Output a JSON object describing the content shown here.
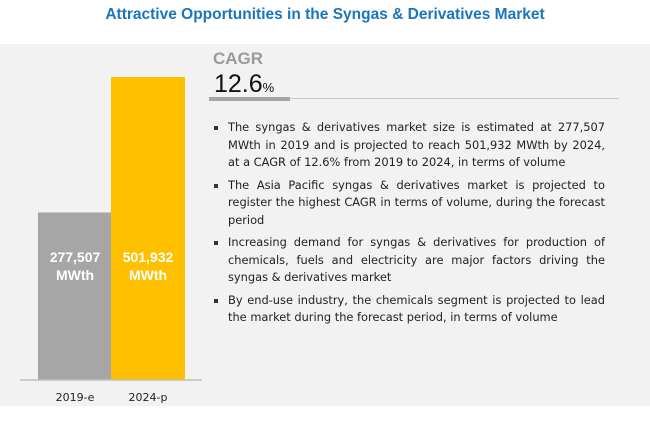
{
  "title": "Attractive Opportunities in the Syngas & Derivatives Market",
  "cagr": {
    "label": "CAGR",
    "value": "12.6",
    "unit": "%"
  },
  "bullets": [
    "The syngas & derivatives market size is estimated at 277,507 MWth in 2019 and is projected to reach 501,932 MWth by 2024, at a CAGR of 12.6% from 2019 to 2024, in terms of volume",
    "The Asia Pacific syngas & derivatives market is projected to register the highest CAGR in terms of volume, during the forecast period",
    "Increasing demand for syngas & derivatives for production of chemicals, fuels and electricity are major factors driving the syngas & derivatives market",
    "By end-use industry, the chemicals segment is projected to lead the market during the forecast period, in terms of volume"
  ],
  "chart_data": {
    "type": "bar",
    "categories": [
      "2019-e",
      "2024-p"
    ],
    "values": [
      277507,
      501932
    ],
    "data_labels": [
      [
        "277,507",
        "MWth"
      ],
      [
        "501,932",
        "MWth"
      ]
    ],
    "unit": "MWth",
    "colors": [
      "#a6a6a6",
      "#ffc000"
    ]
  }
}
